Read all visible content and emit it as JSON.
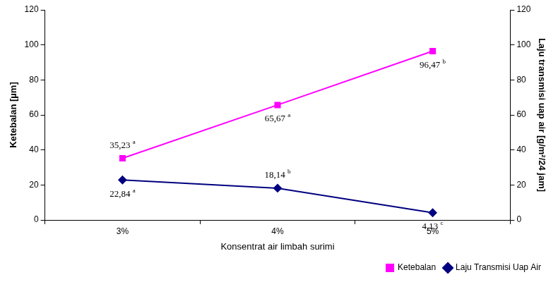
{
  "chart_data": {
    "type": "line",
    "x_label": "Konsentrat air limbah surimi",
    "y_label": "Ketebalan [µm]",
    "y2_label": "Laju transmisi uap air [g/m²/24 jam]",
    "categories": [
      "3%",
      "4%",
      "5%"
    ],
    "series": [
      {
        "name": "Ketebalan",
        "color": "#ff00ff",
        "marker": "square",
        "values": [
          35.23,
          65.67,
          96.47
        ],
        "value_labels": [
          "35,23 a",
          "65,67 a",
          "96,47 b"
        ]
      },
      {
        "name": "Laju Transmisi Uap Air",
        "color": "#000080",
        "marker": "diamond",
        "axis": "y2",
        "values": [
          22.84,
          18.14,
          4.13
        ],
        "value_labels": [
          "22,84 a",
          "18,14 b",
          "4,13 c"
        ]
      }
    ],
    "ylim": [
      0,
      120
    ],
    "yticks": [
      0,
      20,
      40,
      60,
      80,
      100,
      120
    ],
    "y2lim": [
      0,
      120
    ],
    "y2ticks": [
      0,
      20,
      40,
      60,
      80,
      100,
      120
    ],
    "grid": false,
    "legend": "lower right",
    "data_labels": true
  }
}
